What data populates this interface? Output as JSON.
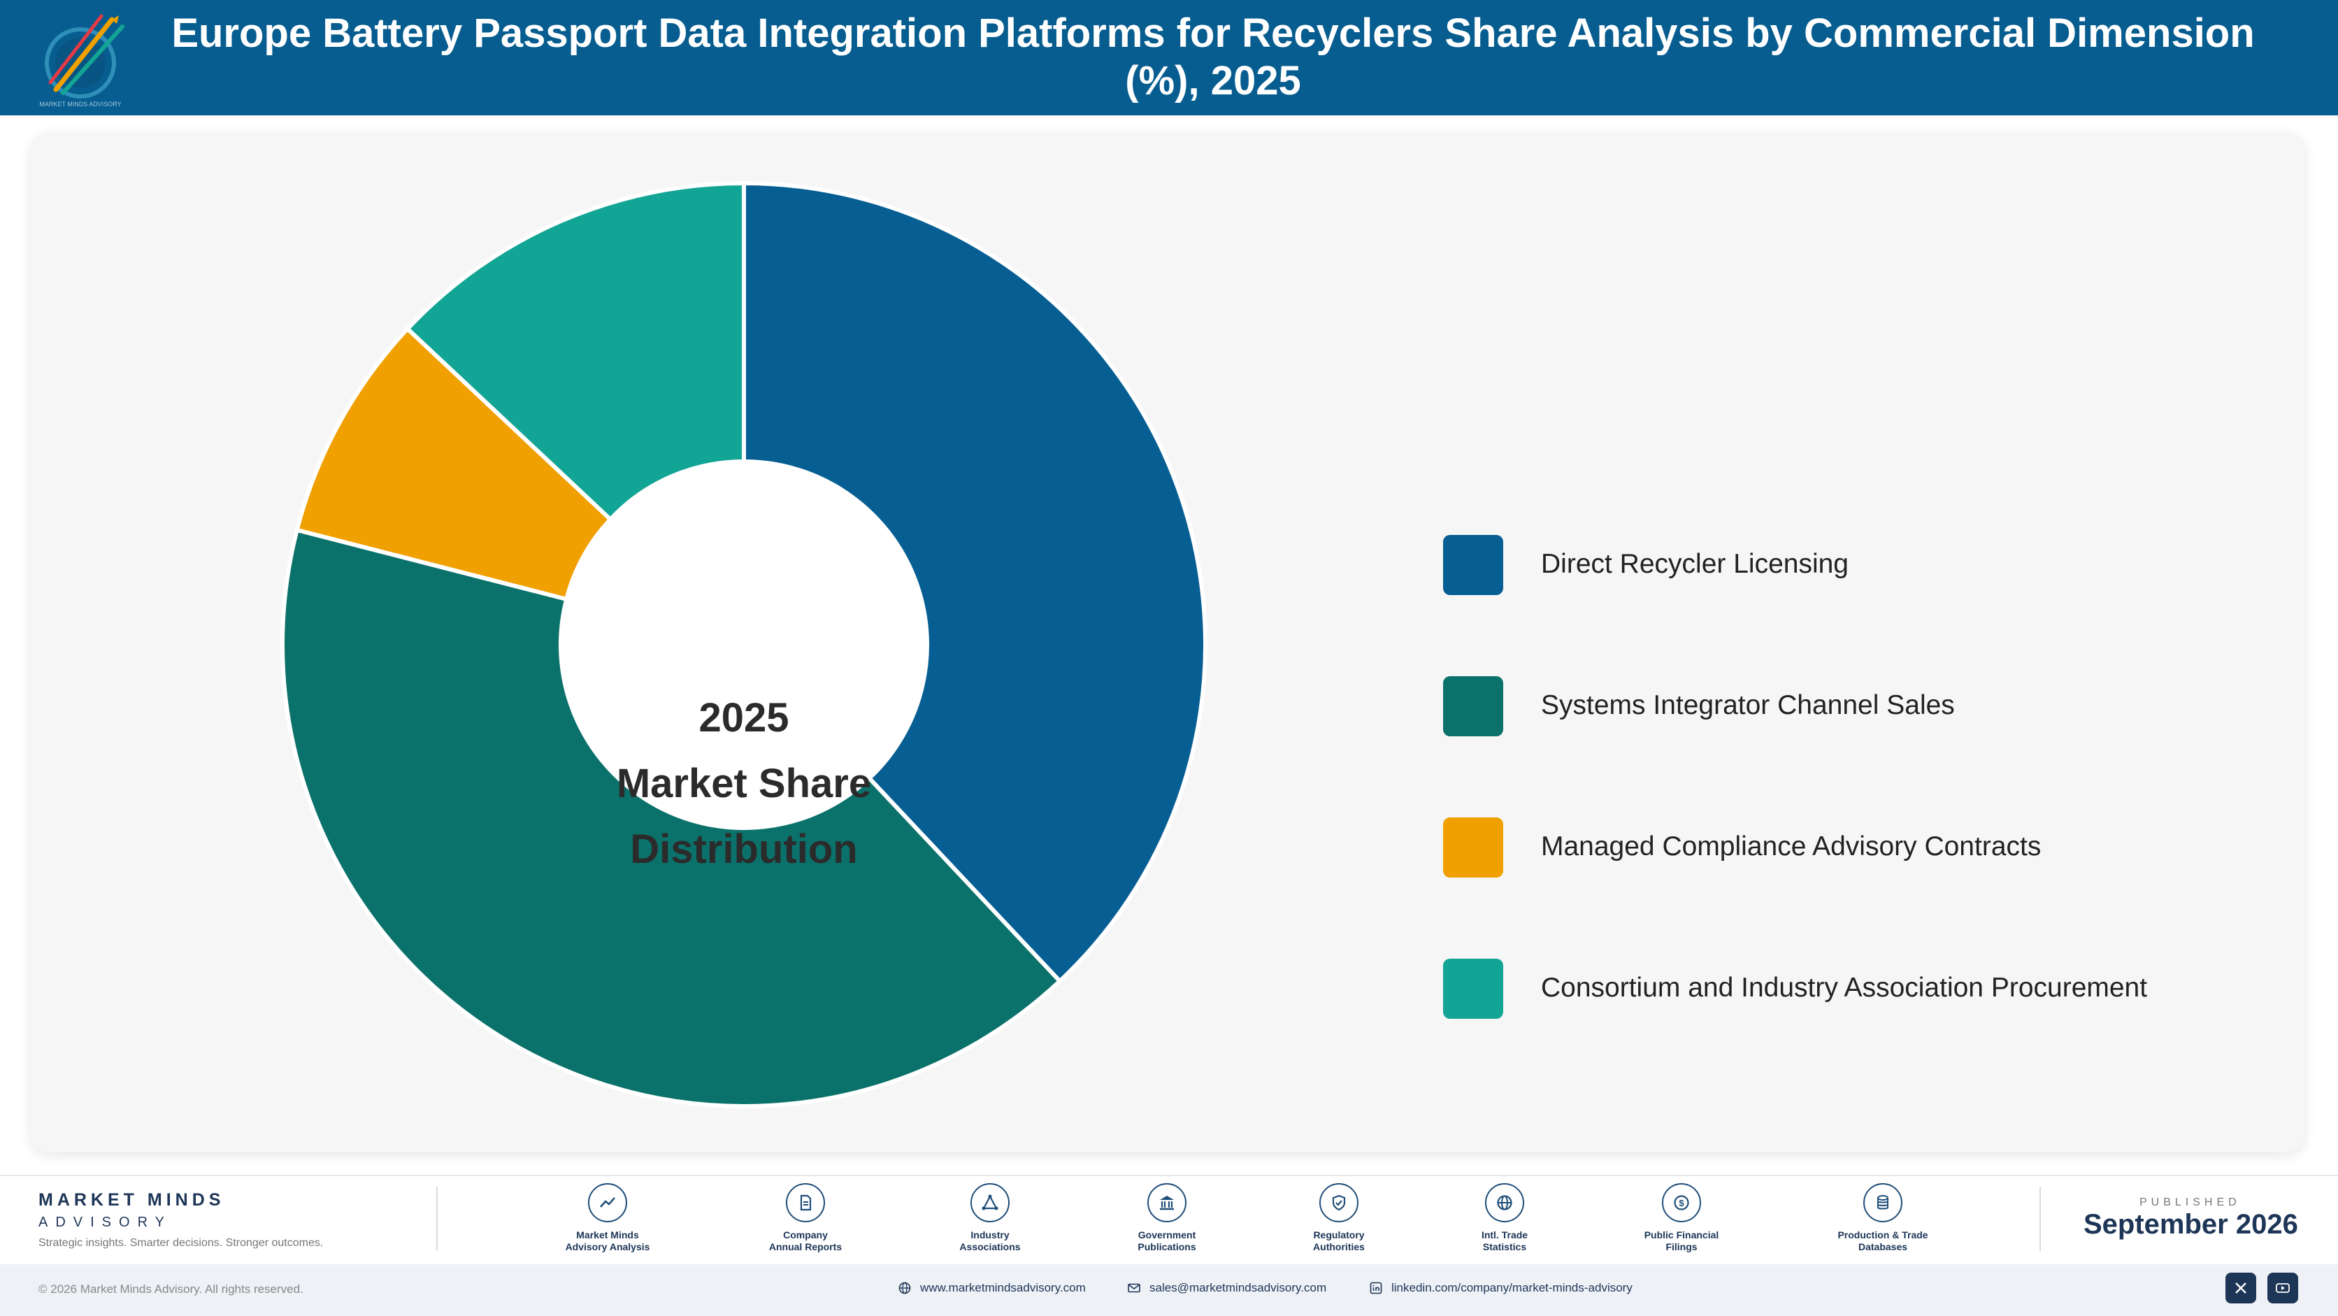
{
  "header": {
    "title": "Europe Battery Passport Data Integration Platforms for Recyclers Share Analysis by Commercial Dimension (%), 2025"
  },
  "colors": {
    "header_bg": "#075d8f",
    "series": [
      "#065e93",
      "#0b726b",
      "#f0a000",
      "#12a595"
    ]
  },
  "chart_data": {
    "type": "pie",
    "variant": "donut",
    "center_label": [
      "2025",
      "Market Share",
      "Distribution"
    ],
    "categories": [
      "Direct Recycler Licensing",
      "Systems Integrator Channel Sales",
      "Managed Compliance Advisory Contracts",
      "Consortium and Industry Association Procurement"
    ],
    "values": [
      38,
      41,
      8,
      13
    ],
    "legend_position": "right"
  },
  "footer": {
    "brand_name": "MARKET MINDS",
    "brand_sub": "ADVISORY",
    "tagline": "Strategic insights. Smarter decisions. Stronger outcomes.",
    "sources": [
      {
        "line1": "Market Minds",
        "line2": "Advisory Analysis",
        "icon": "chart-line-icon"
      },
      {
        "line1": "Company",
        "line2": "Annual Reports",
        "icon": "document-icon"
      },
      {
        "line1": "Industry",
        "line2": "Associations",
        "icon": "network-icon"
      },
      {
        "line1": "Government",
        "line2": "Publications",
        "icon": "government-building-icon"
      },
      {
        "line1": "Regulatory",
        "line2": "Authorities",
        "icon": "shield-check-icon"
      },
      {
        "line1": "Intl. Trade",
        "line2": "Statistics",
        "icon": "globe-icon"
      },
      {
        "line1": "Public Financial",
        "line2": "Filings",
        "icon": "dollar-coin-icon"
      },
      {
        "line1": "Production & Trade",
        "line2": "Databases",
        "icon": "database-icon"
      }
    ],
    "published_label": "PUBLISHED",
    "published_date": "September 2026",
    "copyright": "© 2026 Market Minds Advisory. All rights reserved.",
    "website": "www.marketmindsadvisory.com",
    "email": "sales@marketmindsadvisory.com",
    "linkedin": "linkedin.com/company/market-minds-advisory"
  }
}
